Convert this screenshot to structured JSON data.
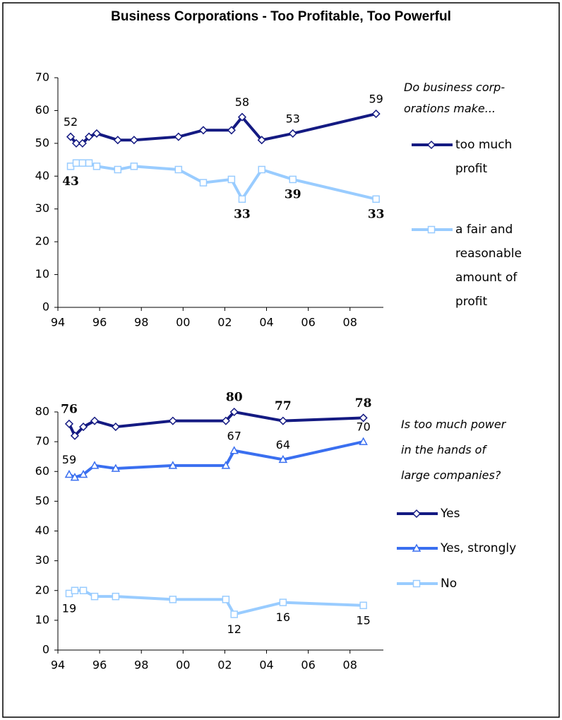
{
  "title": "Business Corporations - Too Profitable, Too Powerful",
  "chart_data": [
    {
      "type": "line",
      "legend_title": [
        "Do business corp-",
        "orations make..."
      ],
      "xlim": [
        1994,
        2009.6
      ],
      "ylim": [
        0,
        70
      ],
      "xticks": [
        {
          "value": 1994,
          "label": "94"
        },
        {
          "value": 1996,
          "label": "96"
        },
        {
          "value": 1998,
          "label": "98"
        },
        {
          "value": 2000,
          "label": "00"
        },
        {
          "value": 2002,
          "label": "02"
        },
        {
          "value": 2004,
          "label": "04"
        },
        {
          "value": 2006,
          "label": "06"
        },
        {
          "value": 2008,
          "label": "08"
        }
      ],
      "yticks": [
        0,
        10,
        20,
        30,
        40,
        50,
        60,
        70
      ],
      "series": [
        {
          "name": "too much profit",
          "color": "#141a82",
          "marker": "diamond",
          "label_position": "above",
          "label_bold": false,
          "x": [
            1994.61,
            1994.88,
            1995.18,
            1995.49,
            1995.86,
            1996.87,
            1997.65,
            1999.78,
            2000.97,
            2002.32,
            2002.83,
            2003.77,
            2005.26,
            2009.25
          ],
          "values": [
            52,
            50,
            50,
            52,
            53,
            51,
            51,
            52,
            54,
            54,
            58,
            51,
            53,
            59
          ],
          "value_labels": [
            "52",
            null,
            null,
            null,
            null,
            null,
            null,
            null,
            null,
            null,
            "58",
            null,
            "53",
            "59"
          ]
        },
        {
          "name": "a fair and reasonable amount of profit",
          "color": "#99ccff",
          "marker": "square",
          "label_position": "below",
          "label_bold": true,
          "x": [
            1994.61,
            1994.88,
            1995.18,
            1995.49,
            1995.86,
            1996.87,
            1997.65,
            1999.78,
            2000.97,
            2002.32,
            2002.83,
            2003.77,
            2005.26,
            2009.25
          ],
          "values": [
            43,
            44,
            44,
            44,
            43,
            42,
            43,
            42,
            38,
            39,
            33,
            42,
            39,
            33
          ],
          "value_labels": [
            "43",
            null,
            null,
            null,
            null,
            null,
            null,
            null,
            null,
            null,
            "33",
            null,
            "39",
            "33"
          ]
        }
      ]
    },
    {
      "type": "line",
      "legend_title": [
        "Is too much power",
        "in the hands of",
        "large companies?"
      ],
      "xlim": [
        1994,
        2009.6
      ],
      "ylim": [
        0,
        80
      ],
      "xticks": [
        {
          "value": 1994,
          "label": "94"
        },
        {
          "value": 1996,
          "label": "96"
        },
        {
          "value": 1998,
          "label": "98"
        },
        {
          "value": 2000,
          "label": "00"
        },
        {
          "value": 2002,
          "label": "02"
        },
        {
          "value": 2004,
          "label": "04"
        },
        {
          "value": 2006,
          "label": "06"
        },
        {
          "value": 2008,
          "label": "08"
        }
      ],
      "yticks": [
        0,
        10,
        20,
        30,
        40,
        50,
        60,
        70,
        80
      ],
      "series": [
        {
          "name": "Yes",
          "color": "#141a82",
          "marker": "diamond",
          "label_position": "above",
          "label_bold": true,
          "x": [
            1994.54,
            1994.81,
            1995.22,
            1995.76,
            1996.77,
            1999.51,
            2002.05,
            2002.45,
            2004.79,
            2008.64
          ],
          "values": [
            76,
            72,
            75,
            77,
            75,
            77,
            77,
            80,
            77,
            78
          ],
          "value_labels": [
            "76",
            null,
            null,
            null,
            null,
            null,
            null,
            "80",
            "77",
            "78"
          ]
        },
        {
          "name": "Yes, strongly",
          "color": "#3a6ff0",
          "marker": "triangle",
          "label_position": "above",
          "label_bold": false,
          "x": [
            1994.54,
            1994.81,
            1995.22,
            1995.76,
            1996.77,
            1999.51,
            2002.05,
            2002.45,
            2004.79,
            2008.64
          ],
          "values": [
            59,
            58,
            59,
            62,
            61,
            62,
            62,
            67,
            64,
            70
          ],
          "value_labels": [
            "59",
            null,
            null,
            null,
            null,
            null,
            null,
            "67",
            "64",
            "70"
          ]
        },
        {
          "name": "No",
          "color": "#99ccff",
          "marker": "square",
          "label_position": "below",
          "label_bold": false,
          "x": [
            1994.54,
            1994.81,
            1995.22,
            1995.76,
            1996.77,
            1999.51,
            2002.05,
            2002.45,
            2004.79,
            2008.64
          ],
          "values": [
            19,
            20,
            20,
            18,
            18,
            17,
            17,
            12,
            16,
            15
          ],
          "value_labels": [
            "19",
            null,
            null,
            null,
            null,
            null,
            null,
            "12",
            "16",
            "15"
          ]
        }
      ]
    }
  ]
}
